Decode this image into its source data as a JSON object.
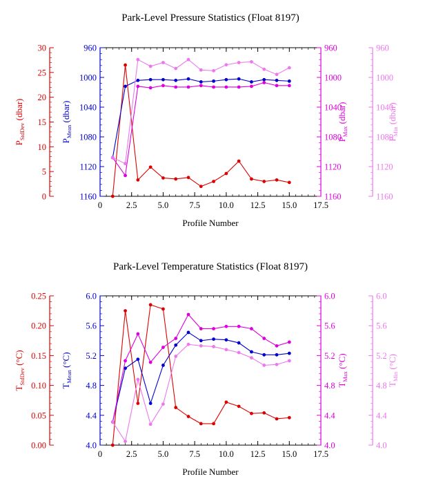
{
  "chart_data": [
    {
      "type": "line",
      "title": "Park-Level Pressure Statistics (Float 8197)",
      "xlabel": "Profile Number",
      "xlim": [
        0,
        17.5
      ],
      "x_ticks": [
        "0",
        "2.5",
        "5.0",
        "7.5",
        "10.0",
        "12.5",
        "15.0",
        "17.5"
      ],
      "x": [
        1,
        2,
        3,
        4,
        5,
        6,
        7,
        8,
        9,
        10,
        11,
        12,
        13,
        14,
        15
      ],
      "grid": false,
      "legend": "none",
      "axes": [
        {
          "key": "std",
          "side": "left",
          "offset": 0,
          "label": "P",
          "label_sub": "StdDev",
          "label_unit": " (dbar)",
          "color": "#dd0000",
          "lim": [
            0,
            30
          ],
          "ticks": [
            "0",
            "5",
            "10",
            "15",
            "20",
            "25",
            "30"
          ]
        },
        {
          "key": "mean",
          "side": "left",
          "offset": 1,
          "label": "P",
          "label_sub": "Mean",
          "label_unit": " (dbar)",
          "color": "#0000cc",
          "lim": [
            1160,
            960
          ],
          "ticks": [
            "960",
            "1000",
            "1040",
            "1080",
            "1120",
            "1160"
          ]
        },
        {
          "key": "max",
          "side": "right",
          "offset": 0,
          "label": "P",
          "label_sub": "Max",
          "label_unit": " (dbar)",
          "color": "#dd00dd",
          "lim": [
            1160,
            960
          ],
          "ticks": [
            "960",
            "1000",
            "1040",
            "1080",
            "1120",
            "1160"
          ]
        },
        {
          "key": "min",
          "side": "right",
          "offset": 1,
          "label": "P",
          "label_sub": "Min",
          "label_unit": " (dbar)",
          "color": "#ee77ee",
          "lim": [
            1160,
            960
          ],
          "ticks": [
            "960",
            "1000",
            "1040",
            "1080",
            "1120",
            "1160"
          ]
        }
      ],
      "series": [
        {
          "axis": "std",
          "color": "#dd0000",
          "values": [
            0,
            26.5,
            3.3,
            5.9,
            3.7,
            3.5,
            3.8,
            2.0,
            3.0,
            4.6,
            7.1,
            3.5,
            3.0,
            3.3,
            2.8
          ]
        },
        {
          "axis": "mean",
          "color": "#0000cc",
          "values": [
            1108,
            1012,
            1004,
            1003,
            1003,
            1004,
            1002,
            1006,
            1005,
            1003,
            1002,
            1006,
            1003,
            1004,
            1005
          ]
        },
        {
          "axis": "max",
          "color": "#dd00dd",
          "values": [
            1108,
            1132,
            1012,
            1014,
            1011,
            1013,
            1013,
            1011,
            1013,
            1013,
            1013,
            1012,
            1007,
            1011,
            1011
          ]
        },
        {
          "axis": "min",
          "color": "#ee77ee",
          "values": [
            1108,
            1116,
            976,
            985,
            980,
            988,
            976,
            990,
            991,
            983,
            980,
            979,
            989,
            996,
            987
          ]
        }
      ]
    },
    {
      "type": "line",
      "title": "Park-Level Temperature Statistics (Float 8197)",
      "xlabel": "Profile Number",
      "xlim": [
        0,
        17.5
      ],
      "x_ticks": [
        "0",
        "2.5",
        "5.0",
        "7.5",
        "10.0",
        "12.5",
        "15.0",
        "17.5"
      ],
      "x": [
        1,
        2,
        3,
        4,
        5,
        6,
        7,
        8,
        9,
        10,
        11,
        12,
        13,
        14,
        15
      ],
      "grid": false,
      "legend": "none",
      "axes": [
        {
          "key": "std",
          "side": "left",
          "offset": 0,
          "label": "T",
          "label_sub": "StdDev",
          "label_unit": " (°C)",
          "color": "#dd0000",
          "lim": [
            0,
            0.25
          ],
          "ticks": [
            "0.00",
            "0.05",
            "0.10",
            "0.15",
            "0.20",
            "0.25"
          ]
        },
        {
          "key": "mean",
          "side": "left",
          "offset": 1,
          "label": "T",
          "label_sub": "Mean",
          "label_unit": " (°C)",
          "color": "#0000cc",
          "lim": [
            4.0,
            6.0
          ],
          "ticks": [
            "4.0",
            "4.4",
            "4.8",
            "5.2",
            "5.6",
            "6.0"
          ]
        },
        {
          "key": "max",
          "side": "right",
          "offset": 0,
          "label": "T",
          "label_sub": "Max",
          "label_unit": " (°C)",
          "color": "#dd00dd",
          "lim": [
            4.0,
            6.0
          ],
          "ticks": [
            "4.0",
            "4.4",
            "4.8",
            "5.2",
            "5.6",
            "6.0"
          ]
        },
        {
          "key": "min",
          "side": "right",
          "offset": 1,
          "label": "T",
          "label_sub": "Min",
          "label_unit": " (°C)",
          "color": "#ee77ee",
          "lim": [
            4.0,
            6.0
          ],
          "ticks": [
            "4.0",
            "4.4",
            "4.8",
            "5.2",
            "5.6",
            "6.0"
          ]
        }
      ],
      "series": [
        {
          "axis": "std",
          "color": "#dd0000",
          "values": [
            0,
            0.225,
            0.07,
            0.235,
            0.228,
            0.063,
            0.048,
            0.036,
            0.036,
            0.072,
            0.065,
            0.053,
            0.054,
            0.044,
            0.046
          ]
        },
        {
          "axis": "mean",
          "color": "#0000cc",
          "values": [
            4.31,
            5.03,
            5.15,
            4.56,
            5.07,
            5.34,
            5.51,
            5.4,
            5.42,
            5.41,
            5.37,
            5.25,
            5.21,
            5.21,
            5.23
          ]
        },
        {
          "axis": "max",
          "color": "#dd00dd",
          "values": [
            4.31,
            5.13,
            5.49,
            5.11,
            5.31,
            5.43,
            5.75,
            5.56,
            5.56,
            5.59,
            5.59,
            5.56,
            5.43,
            5.33,
            5.38
          ]
        },
        {
          "axis": "min",
          "color": "#ee77ee",
          "values": [
            4.31,
            4.05,
            4.88,
            4.28,
            4.55,
            5.19,
            5.35,
            5.33,
            5.32,
            5.28,
            5.24,
            5.17,
            5.07,
            5.08,
            5.13
          ]
        }
      ]
    }
  ]
}
